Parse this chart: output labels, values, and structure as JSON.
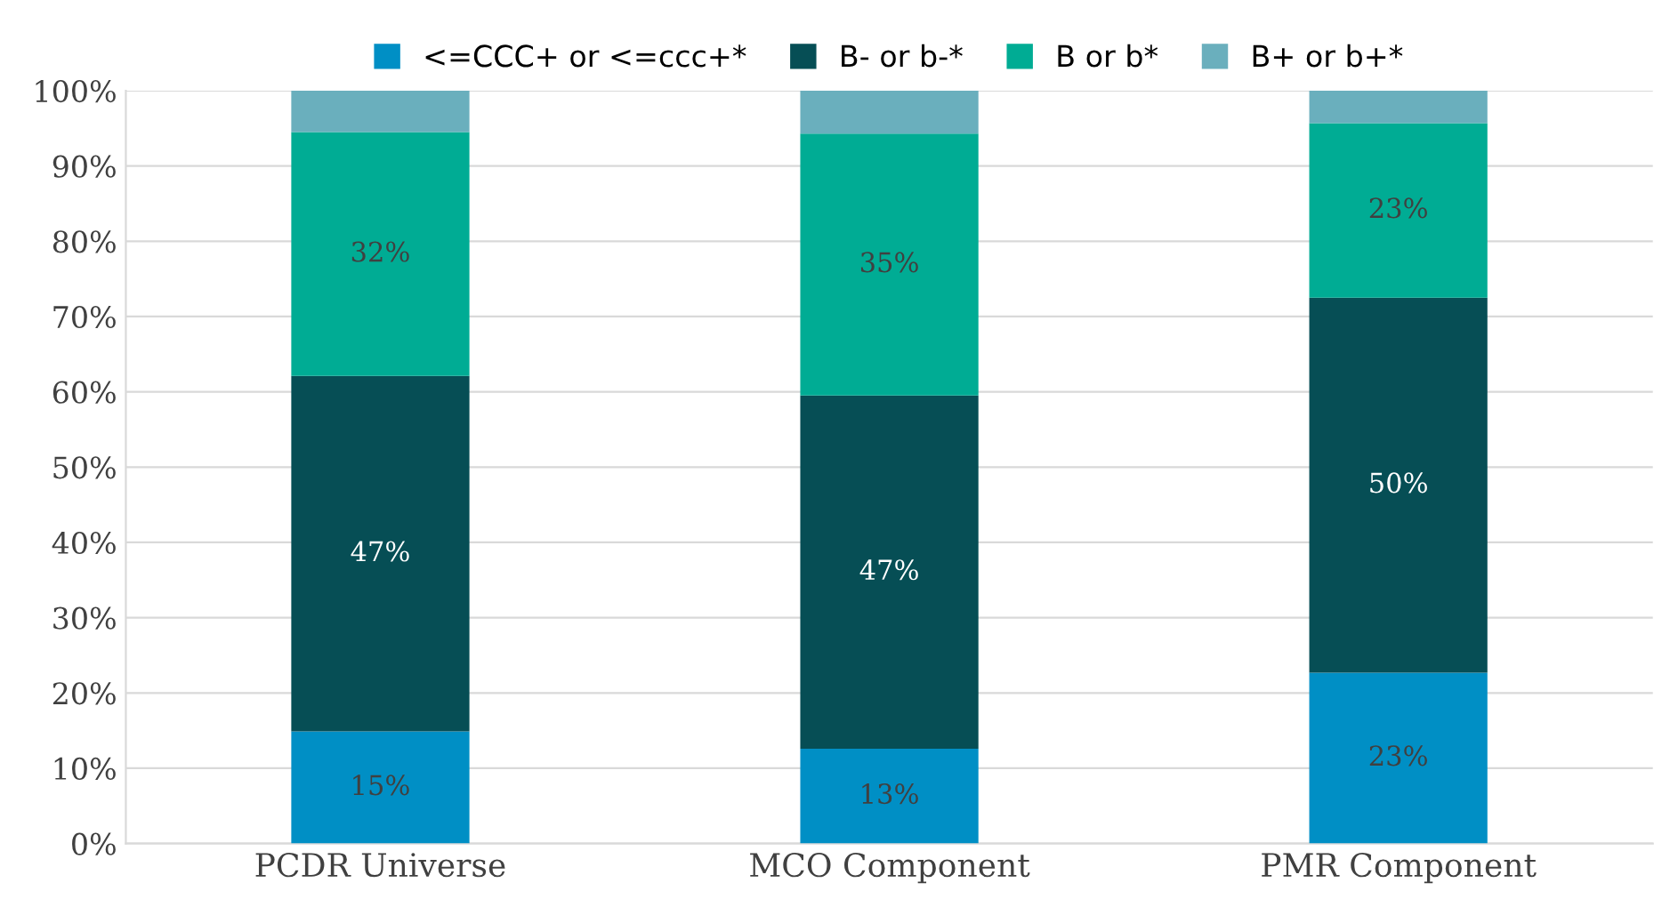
{
  "chart_data": {
    "type": "bar",
    "stacked": true,
    "categories": [
      "PCDR Universe",
      "MCO Component",
      "PMR Component"
    ],
    "series": [
      {
        "name": "<=CCC+ or <=ccc+*",
        "color": "#008fc5",
        "values": [
          14.9,
          12.6,
          22.7
        ],
        "value_labels": [
          "15%",
          "13%",
          "23%"
        ]
      },
      {
        "name": "B- or b-*",
        "color": "#064e55",
        "values": [
          47.2,
          46.9,
          49.8
        ],
        "value_labels": [
          "47%",
          "47%",
          "50%"
        ]
      },
      {
        "name": "B or b*",
        "color": "#00ac94",
        "values": [
          32.4,
          34.8,
          23.2
        ],
        "value_labels": [
          "32%",
          "35%",
          "23%"
        ]
      },
      {
        "name": "B+ or b+*",
        "color": "#6aafbd",
        "values": [
          5.5,
          5.7,
          4.3
        ],
        "value_labels": [
          null,
          null,
          null
        ]
      }
    ],
    "ylim": [
      0,
      100
    ],
    "yticks": [
      {
        "value": 0,
        "label": "0%"
      },
      {
        "value": 10,
        "label": "10%"
      },
      {
        "value": 20,
        "label": "20%"
      },
      {
        "value": 30,
        "label": "30%"
      },
      {
        "value": 40,
        "label": "40%"
      },
      {
        "value": 50,
        "label": "50%"
      },
      {
        "value": 60,
        "label": "60%"
      },
      {
        "value": 70,
        "label": "70%"
      },
      {
        "value": 80,
        "label": "80%"
      },
      {
        "value": 90,
        "label": "90%"
      },
      {
        "value": 100,
        "label": "100%"
      }
    ],
    "grid": "y",
    "legend": "top"
  }
}
